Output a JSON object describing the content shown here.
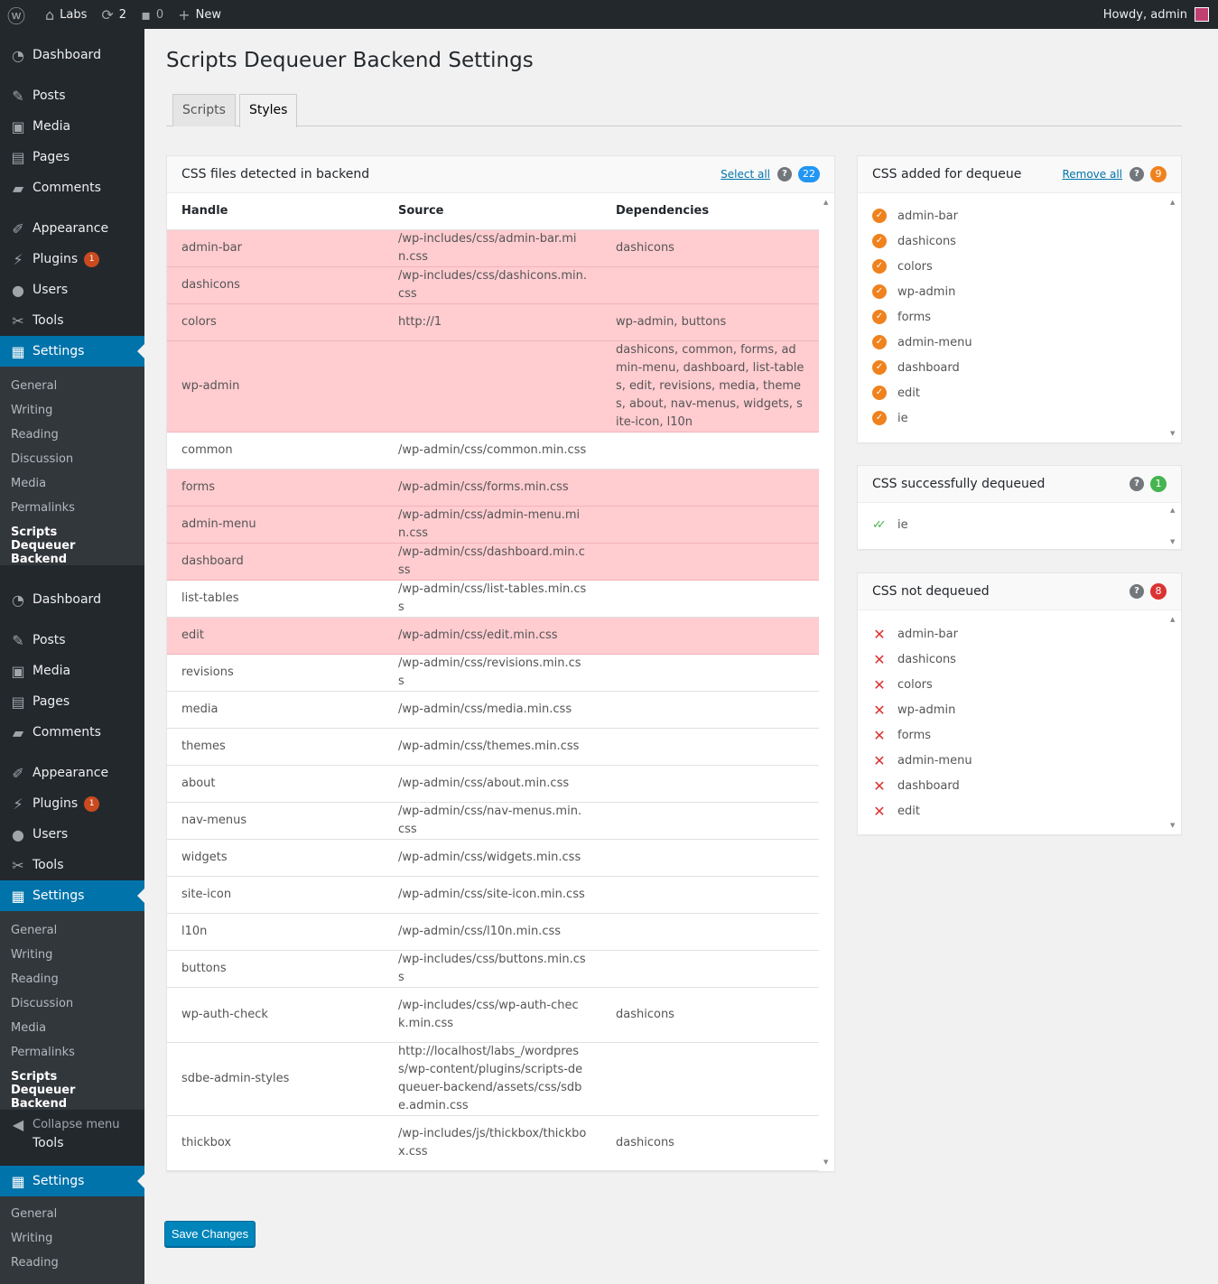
{
  "adminbar": {
    "site_name": "Labs",
    "updates_count": "2",
    "comments_count": "0",
    "new_label": "New",
    "howdy": "Howdy, admin"
  },
  "sidebar": {
    "blocks": [
      {
        "items": [
          {
            "label": "Dashboard",
            "icon": "dashboard-icon"
          },
          {
            "label": "Posts",
            "icon": "pin-icon"
          },
          {
            "label": "Media",
            "icon": "media-icon"
          },
          {
            "label": "Pages",
            "icon": "pages-icon"
          },
          {
            "label": "Comments",
            "icon": "comments-icon"
          },
          {
            "label": "Appearance",
            "icon": "brush-icon"
          },
          {
            "label": "Plugins",
            "icon": "plugin-icon",
            "badge": "1"
          },
          {
            "label": "Users",
            "icon": "user-icon"
          },
          {
            "label": "Tools",
            "icon": "wrench-icon"
          },
          {
            "label": "Settings",
            "icon": "settings-icon",
            "current": true
          }
        ],
        "submenu": [
          "General",
          "Writing",
          "Reading",
          "Discussion",
          "Media",
          "Permalinks",
          "Scripts Dequeuer Backend"
        ]
      },
      {
        "items": [
          {
            "label": "Dashboard",
            "icon": "dashboard-icon"
          },
          {
            "label": "Posts",
            "icon": "pin-icon"
          },
          {
            "label": "Media",
            "icon": "media-icon"
          },
          {
            "label": "Pages",
            "icon": "pages-icon"
          },
          {
            "label": "Comments",
            "icon": "comments-icon"
          },
          {
            "label": "Appearance",
            "icon": "brush-icon"
          },
          {
            "label": "Plugins",
            "icon": "plugin-icon",
            "badge": "1"
          },
          {
            "label": "Users",
            "icon": "user-icon"
          },
          {
            "label": "Tools",
            "icon": "wrench-icon"
          },
          {
            "label": "Settings",
            "icon": "settings-icon",
            "current": true
          }
        ],
        "submenu": [
          "General",
          "Writing",
          "Reading",
          "Discussion",
          "Media",
          "Permalinks",
          "Scripts Dequeuer Backend"
        ]
      }
    ],
    "collapse_label": "Collapse menu",
    "tail_tools": "Tools",
    "tail_settings": "Settings",
    "tail_submenu": [
      "General",
      "Writing",
      "Reading"
    ]
  },
  "page": {
    "title": "Scripts Dequeuer Backend Settings",
    "tabs": [
      {
        "label": "Scripts",
        "active": false
      },
      {
        "label": "Styles",
        "active": true
      }
    ],
    "save_label": "Save Changes"
  },
  "detected": {
    "title": "CSS files detected in backend",
    "select_all": "Select all",
    "help": "?",
    "count": "22",
    "columns": [
      "Handle",
      "Source",
      "Dependencies"
    ],
    "rows": [
      {
        "handle": "admin-bar",
        "source": "/wp-includes/css/admin-bar.min.css",
        "deps": "dashicons",
        "selected": true
      },
      {
        "handle": "dashicons",
        "source": "/wp-includes/css/dashicons.min.css",
        "deps": "",
        "selected": true
      },
      {
        "handle": "colors",
        "source": "http://1",
        "deps": "wp-admin, buttons",
        "selected": true
      },
      {
        "handle": "wp-admin",
        "source": "",
        "deps": "dashicons, common, forms, admin-menu, dashboard, list-tables, edit, revisions, media, themes, about, nav-menus, widgets, site-icon, l10n",
        "selected": true
      },
      {
        "handle": "common",
        "source": "/wp-admin/css/common.min.css",
        "deps": "",
        "selected": false
      },
      {
        "handle": "forms",
        "source": "/wp-admin/css/forms.min.css",
        "deps": "",
        "selected": true
      },
      {
        "handle": "admin-menu",
        "source": "/wp-admin/css/admin-menu.min.css",
        "deps": "",
        "selected": true
      },
      {
        "handle": "dashboard",
        "source": "/wp-admin/css/dashboard.min.css",
        "deps": "",
        "selected": true
      },
      {
        "handle": "list-tables",
        "source": "/wp-admin/css/list-tables.min.css",
        "deps": "",
        "selected": false
      },
      {
        "handle": "edit",
        "source": "/wp-admin/css/edit.min.css",
        "deps": "",
        "selected": true
      },
      {
        "handle": "revisions",
        "source": "/wp-admin/css/revisions.min.css",
        "deps": "",
        "selected": false
      },
      {
        "handle": "media",
        "source": "/wp-admin/css/media.min.css",
        "deps": "",
        "selected": false
      },
      {
        "handle": "themes",
        "source": "/wp-admin/css/themes.min.css",
        "deps": "",
        "selected": false
      },
      {
        "handle": "about",
        "source": "/wp-admin/css/about.min.css",
        "deps": "",
        "selected": false
      },
      {
        "handle": "nav-menus",
        "source": "/wp-admin/css/nav-menus.min.css",
        "deps": "",
        "selected": false
      },
      {
        "handle": "widgets",
        "source": "/wp-admin/css/widgets.min.css",
        "deps": "",
        "selected": false
      },
      {
        "handle": "site-icon",
        "source": "/wp-admin/css/site-icon.min.css",
        "deps": "",
        "selected": false
      },
      {
        "handle": "l10n",
        "source": "/wp-admin/css/l10n.min.css",
        "deps": "",
        "selected": false
      },
      {
        "handle": "buttons",
        "source": "/wp-includes/css/buttons.min.css",
        "deps": "",
        "selected": false
      },
      {
        "handle": "wp-auth-check",
        "source": "/wp-includes/css/wp-auth-check.min.css",
        "deps": "dashicons",
        "selected": false
      },
      {
        "handle": "sdbe-admin-styles",
        "source": "http://localhost/labs_/wordpress/wp-content/plugins/scripts-dequeuer-backend/assets/css/sdbe.admin.css",
        "deps": "",
        "selected": false
      },
      {
        "handle": "thickbox",
        "source": "/wp-includes/js/thickbox/thickbox.css",
        "deps": "dashicons",
        "selected": false
      }
    ]
  },
  "added": {
    "title": "CSS added for dequeue",
    "remove_all": "Remove all",
    "help": "?",
    "count": "9",
    "items": [
      "admin-bar",
      "dashicons",
      "colors",
      "wp-admin",
      "forms",
      "admin-menu",
      "dashboard",
      "edit",
      "ie"
    ]
  },
  "dequeued": {
    "title": "CSS successfully dequeued",
    "help": "?",
    "count": "1",
    "items": [
      "ie"
    ]
  },
  "not_dequeued": {
    "title": "CSS not dequeued",
    "help": "?",
    "count": "8",
    "items": [
      "admin-bar",
      "dashicons",
      "colors",
      "wp-admin",
      "forms",
      "admin-menu",
      "dashboard",
      "edit"
    ]
  },
  "colors": {
    "admin_bar": "#23282d",
    "accent": "#0073aa",
    "selected_row": "#ffccd0",
    "count_blue": "#2196f3",
    "count_orange": "#f0821e",
    "count_green": "#46b450",
    "count_red": "#dc3232"
  }
}
